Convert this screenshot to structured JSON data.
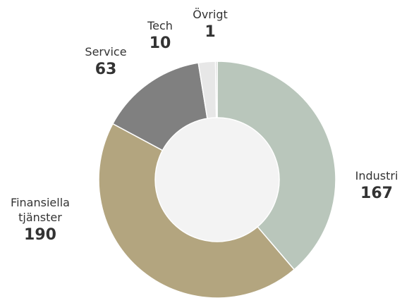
{
  "chart_data": {
    "type": "donut",
    "categories": [
      "Industri",
      "Finansiella tjänster",
      "Service",
      "Tech",
      "Övrigt"
    ],
    "values": [
      167,
      190,
      63,
      10,
      1
    ],
    "colors": [
      "#b9c6bb",
      "#b3a57f",
      "#808080",
      "#e7e7e7",
      "#d0d0d0"
    ]
  }
}
